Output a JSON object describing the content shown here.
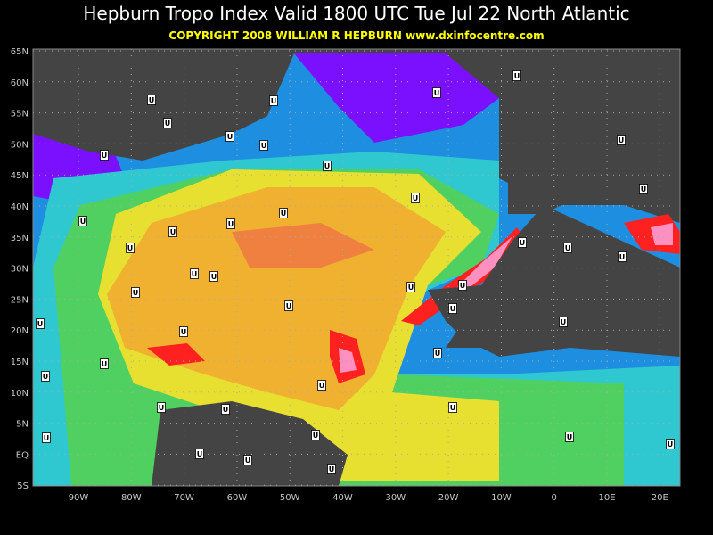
{
  "header": {
    "title": "Hepburn Tropo Index Valid 1800 UTC Tue Jul 22 North Atlantic",
    "copyright": "COPYRIGHT 2008   WILLIAM R HEPBURN   www.dxinfocentre.com"
  },
  "map": {
    "lat_labels": [
      "65N",
      "60N",
      "55N",
      "50N",
      "45N",
      "40N",
      "35N",
      "30N",
      "25N",
      "20N",
      "15N",
      "10N",
      "5N",
      "EQ",
      "5S"
    ],
    "lon_labels": [
      "90W",
      "80W",
      "70W",
      "60W",
      "50W",
      "40W",
      "30W",
      "20W",
      "10W",
      "0",
      "10E",
      "20E"
    ],
    "marker_label": "U"
  }
}
